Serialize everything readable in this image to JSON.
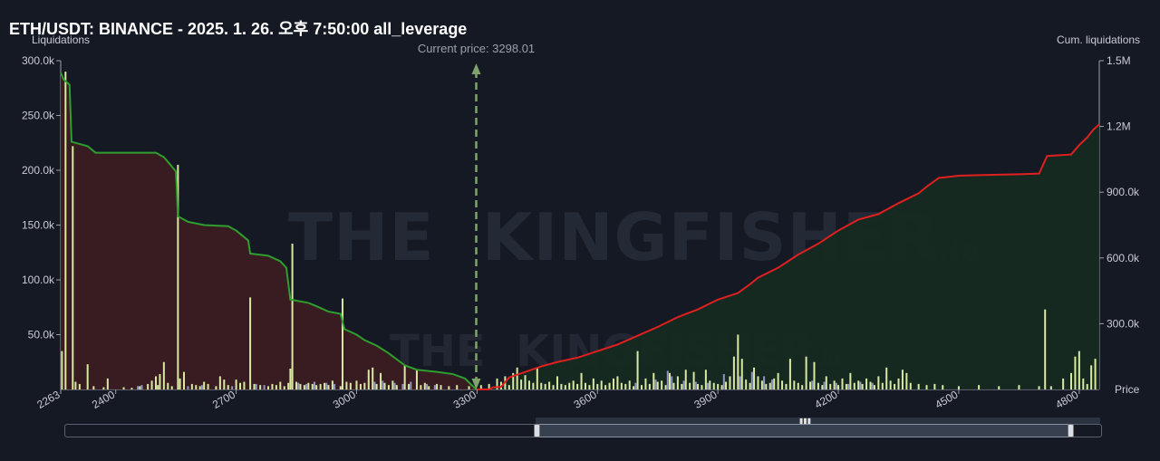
{
  "title": "ETH/USDT: BINANCE - 2025. 1. 26. 오후 7:50:00 all_leverage",
  "chart_data": {
    "type": "bar",
    "left_axis_label": "Liquidations",
    "right_axis_label": "Cum. liquidations",
    "x_axis_label": "Price",
    "current_price_label": "Current price: 3298.01",
    "current_price": 3298.01,
    "xlim": [
      2263,
      4850
    ],
    "ylim_left": [
      0,
      300000
    ],
    "ylim_right": [
      0,
      1500000
    ],
    "x_ticks": [
      "2263",
      "2400",
      "2700",
      "3000",
      "3300",
      "3600",
      "3900",
      "4200",
      "4500",
      "4800"
    ],
    "y_left_ticks": [
      "300.0k",
      "250.0k",
      "200.0k",
      "150.0k",
      "100.0k",
      "50.0k"
    ],
    "y_right_ticks": [
      "1.5M",
      "1.2M",
      "900.0k",
      "600.0k",
      "300.0k"
    ],
    "colors": {
      "short_cum_line": "#2e9e2e",
      "short_fill": "#3a1c22",
      "long_cum_line": "#e0201f",
      "long_fill": "#162a22",
      "bars": "#d9e8a2",
      "bars_alt": "#8f96c4",
      "current_price": "#7fa36a"
    },
    "short_side_cumulative": {
      "name": "below price",
      "points": [
        [
          2263,
          289000
        ],
        [
          2270,
          283000
        ],
        [
          2285,
          278000
        ],
        [
          2290,
          226000
        ],
        [
          2330,
          222000
        ],
        [
          2350,
          216000
        ],
        [
          2500,
          216000
        ],
        [
          2520,
          212000
        ],
        [
          2550,
          199000
        ],
        [
          2555,
          158000
        ],
        [
          2580,
          153000
        ],
        [
          2620,
          150000
        ],
        [
          2680,
          149000
        ],
        [
          2700,
          145000
        ],
        [
          2730,
          136000
        ],
        [
          2735,
          124000
        ],
        [
          2780,
          122000
        ],
        [
          2810,
          117000
        ],
        [
          2825,
          111000
        ],
        [
          2835,
          82000
        ],
        [
          2880,
          79000
        ],
        [
          2900,
          76000
        ],
        [
          2930,
          71000
        ],
        [
          2960,
          69000
        ],
        [
          2970,
          55000
        ],
        [
          3000,
          50000
        ],
        [
          3020,
          45000
        ],
        [
          3050,
          40000
        ],
        [
          3080,
          33000
        ],
        [
          3120,
          22000
        ],
        [
          3150,
          18000
        ],
        [
          3200,
          16000
        ],
        [
          3240,
          14000
        ],
        [
          3270,
          10000
        ],
        [
          3298,
          0
        ]
      ]
    },
    "long_side_cumulative": {
      "name": "above price",
      "points": [
        [
          3298,
          0
        ],
        [
          3330,
          0
        ],
        [
          3340,
          10000
        ],
        [
          3360,
          12000
        ],
        [
          3380,
          55000
        ],
        [
          3420,
          80000
        ],
        [
          3460,
          105000
        ],
        [
          3500,
          125000
        ],
        [
          3550,
          145000
        ],
        [
          3600,
          175000
        ],
        [
          3650,
          205000
        ],
        [
          3700,
          245000
        ],
        [
          3750,
          285000
        ],
        [
          3800,
          330000
        ],
        [
          3850,
          365000
        ],
        [
          3900,
          410000
        ],
        [
          3950,
          440000
        ],
        [
          3980,
          480000
        ],
        [
          4000,
          510000
        ],
        [
          4050,
          555000
        ],
        [
          4100,
          615000
        ],
        [
          4150,
          665000
        ],
        [
          4200,
          725000
        ],
        [
          4250,
          775000
        ],
        [
          4300,
          800000
        ],
        [
          4350,
          850000
        ],
        [
          4400,
          895000
        ],
        [
          4420,
          925000
        ],
        [
          4450,
          965000
        ],
        [
          4500,
          975000
        ],
        [
          4550,
          978000
        ],
        [
          4600,
          980000
        ],
        [
          4650,
          982000
        ],
        [
          4700,
          985000
        ],
        [
          4720,
          1065000
        ],
        [
          4780,
          1072000
        ],
        [
          4800,
          1115000
        ],
        [
          4820,
          1150000
        ],
        [
          4835,
          1185000
        ],
        [
          4850,
          1210000
        ]
      ]
    },
    "bars_values": [
      [
        2266,
        35000
      ],
      [
        2275,
        290000
      ],
      [
        2293,
        222000
      ],
      [
        2300,
        7000
      ],
      [
        2310,
        5000
      ],
      [
        2330,
        23000
      ],
      [
        2345,
        3000
      ],
      [
        2370,
        2000
      ],
      [
        2380,
        10000
      ],
      [
        2420,
        2000
      ],
      [
        2440,
        1500
      ],
      [
        2460,
        3000
      ],
      [
        2480,
        5000
      ],
      [
        2490,
        8000
      ],
      [
        2500,
        12000
      ],
      [
        2505,
        4000
      ],
      [
        2510,
        14000
      ],
      [
        2520,
        25000
      ],
      [
        2530,
        6000
      ],
      [
        2540,
        3000
      ],
      [
        2555,
        205000
      ],
      [
        2560,
        10000
      ],
      [
        2570,
        16000
      ],
      [
        2590,
        5000
      ],
      [
        2600,
        4000
      ],
      [
        2610,
        3000
      ],
      [
        2620,
        7000
      ],
      [
        2630,
        5000
      ],
      [
        2650,
        3000
      ],
      [
        2660,
        12000
      ],
      [
        2670,
        9000
      ],
      [
        2680,
        4000
      ],
      [
        2700,
        9000
      ],
      [
        2710,
        6000
      ],
      [
        2720,
        7000
      ],
      [
        2735,
        84000
      ],
      [
        2745,
        5000
      ],
      [
        2760,
        4000
      ],
      [
        2780,
        3000
      ],
      [
        2790,
        5000
      ],
      [
        2800,
        4000
      ],
      [
        2810,
        7000
      ],
      [
        2820,
        3000
      ],
      [
        2830,
        6000
      ],
      [
        2835,
        19000
      ],
      [
        2840,
        133000
      ],
      [
        2850,
        7000
      ],
      [
        2860,
        5000
      ],
      [
        2870,
        4000
      ],
      [
        2880,
        6000
      ],
      [
        2890,
        5000
      ],
      [
        2900,
        4000
      ],
      [
        2910,
        5000
      ],
      [
        2920,
        6000
      ],
      [
        2930,
        4000
      ],
      [
        2940,
        8000
      ],
      [
        2960,
        3000
      ],
      [
        2965,
        83000
      ],
      [
        2975,
        7000
      ],
      [
        2985,
        6000
      ],
      [
        3000,
        8000
      ],
      [
        3010,
        5000
      ],
      [
        3020,
        6000
      ],
      [
        3030,
        18000
      ],
      [
        3040,
        20000
      ],
      [
        3050,
        5000
      ],
      [
        3060,
        15000
      ],
      [
        3070,
        6000
      ],
      [
        3080,
        4000
      ],
      [
        3090,
        8000
      ],
      [
        3100,
        4000
      ],
      [
        3120,
        22000
      ],
      [
        3130,
        5000
      ],
      [
        3150,
        18000
      ],
      [
        3160,
        4000
      ],
      [
        3170,
        6000
      ],
      [
        3180,
        3000
      ],
      [
        3200,
        5000
      ],
      [
        3210,
        4000
      ],
      [
        3230,
        3000
      ],
      [
        3250,
        4000
      ],
      [
        3280,
        3000
      ],
      [
        3310,
        4000
      ],
      [
        3330,
        5000
      ],
      [
        3350,
        10000
      ],
      [
        3360,
        7000
      ],
      [
        3370,
        12000
      ],
      [
        3380,
        4000
      ],
      [
        3390,
        15000
      ],
      [
        3400,
        20000
      ],
      [
        3410,
        9000
      ],
      [
        3420,
        13000
      ],
      [
        3430,
        8000
      ],
      [
        3440,
        6000
      ],
      [
        3450,
        20000
      ],
      [
        3460,
        6000
      ],
      [
        3470,
        5000
      ],
      [
        3480,
        7000
      ],
      [
        3490,
        4000
      ],
      [
        3500,
        12000
      ],
      [
        3510,
        5000
      ],
      [
        3520,
        4000
      ],
      [
        3530,
        6000
      ],
      [
        3540,
        8000
      ],
      [
        3550,
        5000
      ],
      [
        3560,
        15000
      ],
      [
        3570,
        6000
      ],
      [
        3580,
        4000
      ],
      [
        3590,
        10000
      ],
      [
        3600,
        5000
      ],
      [
        3610,
        8000
      ],
      [
        3620,
        4000
      ],
      [
        3630,
        6000
      ],
      [
        3640,
        10000
      ],
      [
        3650,
        12000
      ],
      [
        3660,
        6000
      ],
      [
        3670,
        5000
      ],
      [
        3680,
        8000
      ],
      [
        3690,
        3000
      ],
      [
        3700,
        35000
      ],
      [
        3710,
        4000
      ],
      [
        3720,
        10000
      ],
      [
        3730,
        5000
      ],
      [
        3740,
        15000
      ],
      [
        3750,
        7000
      ],
      [
        3760,
        8000
      ],
      [
        3770,
        4000
      ],
      [
        3780,
        15000
      ],
      [
        3790,
        6000
      ],
      [
        3800,
        12000
      ],
      [
        3810,
        5000
      ],
      [
        3820,
        18000
      ],
      [
        3830,
        6000
      ],
      [
        3840,
        16000
      ],
      [
        3850,
        5000
      ],
      [
        3860,
        4000
      ],
      [
        3870,
        18000
      ],
      [
        3880,
        8000
      ],
      [
        3890,
        6000
      ],
      [
        3900,
        5000
      ],
      [
        3910,
        4000
      ],
      [
        3920,
        7000
      ],
      [
        3930,
        12000
      ],
      [
        3940,
        30000
      ],
      [
        3950,
        50000
      ],
      [
        3960,
        28000
      ],
      [
        3970,
        9000
      ],
      [
        3980,
        6000
      ],
      [
        3990,
        20000
      ],
      [
        4000,
        12000
      ],
      [
        4010,
        8000
      ],
      [
        4020,
        5000
      ],
      [
        4030,
        6000
      ],
      [
        4040,
        10000
      ],
      [
        4050,
        15000
      ],
      [
        4060,
        8000
      ],
      [
        4070,
        5000
      ],
      [
        4080,
        28000
      ],
      [
        4090,
        8000
      ],
      [
        4100,
        6000
      ],
      [
        4110,
        4000
      ],
      [
        4120,
        30000
      ],
      [
        4130,
        7000
      ],
      [
        4140,
        25000
      ],
      [
        4150,
        6000
      ],
      [
        4160,
        4000
      ],
      [
        4170,
        12000
      ],
      [
        4180,
        5000
      ],
      [
        4190,
        8000
      ],
      [
        4200,
        4000
      ],
      [
        4210,
        10000
      ],
      [
        4220,
        5000
      ],
      [
        4230,
        15000
      ],
      [
        4240,
        6000
      ],
      [
        4250,
        8000
      ],
      [
        4260,
        5000
      ],
      [
        4270,
        10000
      ],
      [
        4280,
        7000
      ],
      [
        4290,
        4000
      ],
      [
        4300,
        12000
      ],
      [
        4310,
        6000
      ],
      [
        4320,
        20000
      ],
      [
        4330,
        8000
      ],
      [
        4340,
        5000
      ],
      [
        4350,
        10000
      ],
      [
        4360,
        18000
      ],
      [
        4370,
        15000
      ],
      [
        4380,
        6000
      ],
      [
        4400,
        5000
      ],
      [
        4420,
        4000
      ],
      [
        4440,
        5000
      ],
      [
        4460,
        4000
      ],
      [
        4500,
        3000
      ],
      [
        4550,
        4000
      ],
      [
        4600,
        3000
      ],
      [
        4650,
        4000
      ],
      [
        4700,
        3000
      ],
      [
        4715,
        73000
      ],
      [
        4730,
        3000
      ],
      [
        4760,
        10000
      ],
      [
        4780,
        15000
      ],
      [
        4790,
        30000
      ],
      [
        4800,
        35000
      ],
      [
        4810,
        10000
      ],
      [
        4820,
        5000
      ],
      [
        4830,
        22000
      ],
      [
        4840,
        28000
      ]
    ],
    "bars_alt_values": [
      [
        2455,
        3000
      ],
      [
        2465,
        4000
      ],
      [
        2580,
        3000
      ],
      [
        2615,
        4000
      ],
      [
        2690,
        3000
      ],
      [
        2750,
        5000
      ],
      [
        2770,
        4000
      ],
      [
        2855,
        6000
      ],
      [
        2875,
        5000
      ],
      [
        2895,
        7000
      ],
      [
        2925,
        6000
      ],
      [
        2945,
        5000
      ],
      [
        3045,
        7000
      ],
      [
        3065,
        8000
      ],
      [
        3095,
        6000
      ],
      [
        3115,
        5000
      ],
      [
        3135,
        7000
      ],
      [
        3175,
        5000
      ],
      [
        3195,
        4000
      ],
      [
        3695,
        6000
      ],
      [
        3745,
        9000
      ],
      [
        3775,
        17000
      ],
      [
        3785,
        12000
      ],
      [
        3815,
        8000
      ],
      [
        3845,
        7000
      ],
      [
        3875,
        6000
      ],
      [
        3915,
        14000
      ],
      [
        3955,
        12000
      ],
      [
        3985,
        16000
      ],
      [
        4015,
        12000
      ],
      [
        4035,
        9000
      ],
      [
        4135,
        8000
      ],
      [
        4165,
        7000
      ],
      [
        4195,
        6000
      ],
      [
        4225,
        5000
      ],
      [
        4255,
        7000
      ],
      [
        4285,
        6000
      ]
    ]
  }
}
